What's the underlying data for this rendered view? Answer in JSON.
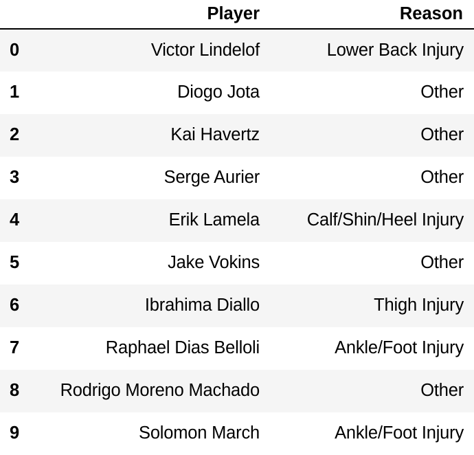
{
  "table": {
    "columns": [
      "",
      "Player",
      "Reason"
    ],
    "rows": [
      {
        "index": "0",
        "player": "Victor Lindelof",
        "reason": "Lower Back Injury"
      },
      {
        "index": "1",
        "player": "Diogo Jota",
        "reason": "Other"
      },
      {
        "index": "2",
        "player": "Kai Havertz",
        "reason": "Other"
      },
      {
        "index": "3",
        "player": "Serge Aurier",
        "reason": "Other"
      },
      {
        "index": "4",
        "player": "Erik Lamela",
        "reason": "Calf/Shin/Heel Injury"
      },
      {
        "index": "5",
        "player": "Jake Vokins",
        "reason": "Other"
      },
      {
        "index": "6",
        "player": "Ibrahima Diallo",
        "reason": "Thigh Injury"
      },
      {
        "index": "7",
        "player": "Raphael Dias Belloli",
        "reason": "Ankle/Foot Injury"
      },
      {
        "index": "8",
        "player": "Rodrigo Moreno Machado",
        "reason": "Other"
      },
      {
        "index": "9",
        "player": "Solomon March",
        "reason": "Ankle/Foot Injury"
      }
    ]
  }
}
